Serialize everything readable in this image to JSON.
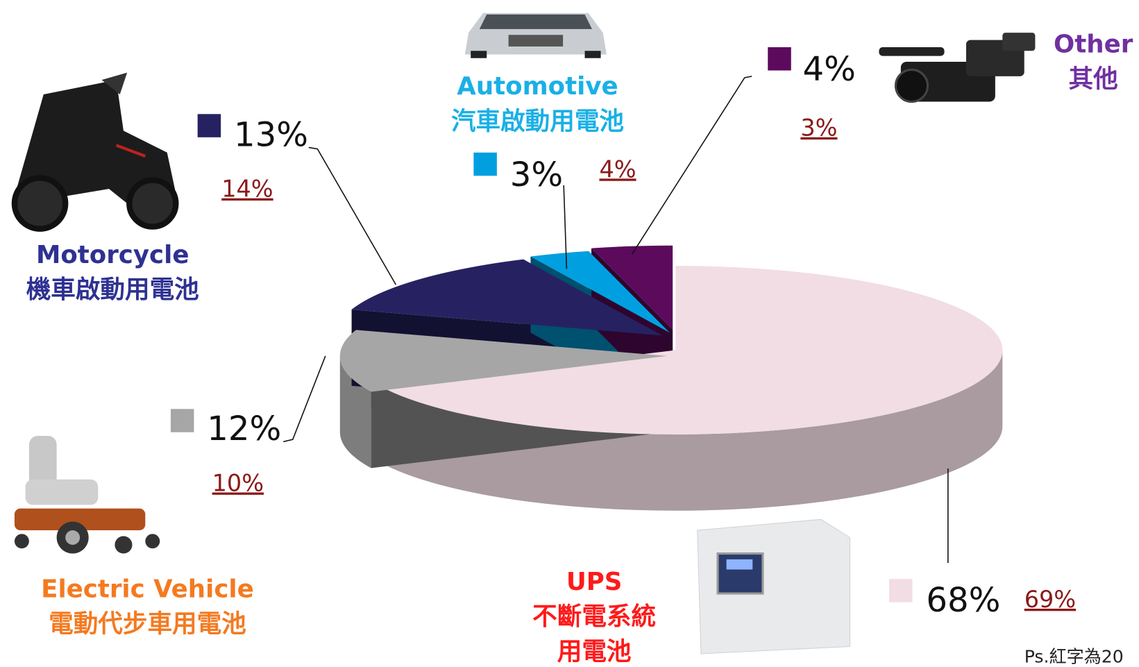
{
  "chart_data": {
    "type": "pie",
    "categories": [
      [
        "UPS",
        "不斷電系統",
        "用電池"
      ],
      [
        "Electric Vehicle",
        "電動代步車用電池"
      ],
      [
        "Motorcycle",
        "機車啟動用電池"
      ],
      [
        "Automotive",
        "汽車啟動用電池"
      ],
      [
        "Other",
        "其他"
      ]
    ],
    "values": [
      68,
      12,
      13,
      3,
      4
    ],
    "value_labels": [
      "68%",
      "12%",
      "13%",
      "3%",
      "4%"
    ],
    "colors": [
      "#f2dde4",
      "#a6a6a6",
      "#262262",
      "#00a0e0",
      "#5c0a5c"
    ],
    "label_colors": [
      "#ff1a1a",
      "#f47a20",
      "#2e3192",
      "#1ab0e6",
      "#7030a0"
    ],
    "previous_values": [
      69,
      10,
      14,
      4,
      3
    ],
    "previous_value_labels": [
      "69%",
      "10%",
      "14%",
      "4%",
      "3%"
    ],
    "previous_color": "#8b1a1a"
  },
  "footnote": "Ps.紅字為20"
}
